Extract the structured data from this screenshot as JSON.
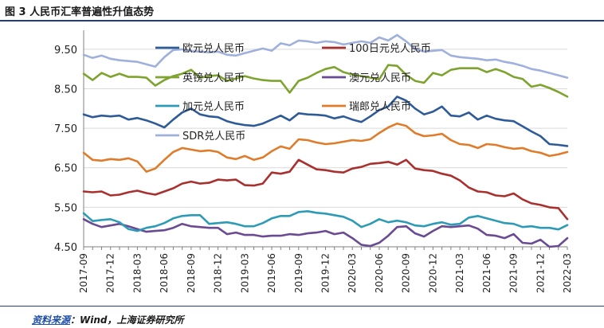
{
  "header": {
    "title": "图 3  人民币汇率普遍性升值态势"
  },
  "footer": {
    "source_label": "资料来源",
    "source_text": "：Wind，上海证券研究所"
  },
  "colors": {
    "eur": "#2e5b98",
    "jpy": "#a8312f",
    "gbp": "#7ea32f",
    "aud": "#6a4a92",
    "cad": "#2e9bb6",
    "chf": "#e07b2a",
    "sdr": "#9fb0dc"
  },
  "chart_data": {
    "type": "line",
    "title": "人民币汇率普遍性升值态势",
    "xlabel": "",
    "ylabel": "",
    "ylim": [
      4.5,
      9.9
    ],
    "yticks": [
      4.5,
      5.5,
      6.5,
      7.5,
      8.5,
      9.5
    ],
    "ytick_labels": [
      "4.50",
      "5.50",
      "6.50",
      "7.50",
      "8.50",
      "9.50"
    ],
    "x": [
      "2017-09",
      "2017-10",
      "2017-11",
      "2017-12",
      "2018-01",
      "2018-02",
      "2018-03",
      "2018-04",
      "2018-05",
      "2018-06",
      "2018-07",
      "2018-08",
      "2018-09",
      "2018-10",
      "2018-11",
      "2018-12",
      "2019-01",
      "2019-02",
      "2019-03",
      "2019-04",
      "2019-05",
      "2019-06",
      "2019-07",
      "2019-08",
      "2019-09",
      "2019-10",
      "2019-11",
      "2019-12",
      "2020-01",
      "2020-02",
      "2020-03",
      "2020-04",
      "2020-05",
      "2020-06",
      "2020-07",
      "2020-08",
      "2020-09",
      "2020-10",
      "2020-11",
      "2020-12",
      "2021-01",
      "2021-02",
      "2021-03",
      "2021-04",
      "2021-05",
      "2021-06",
      "2021-07",
      "2021-08",
      "2021-09",
      "2021-10",
      "2021-11",
      "2021-12",
      "2022-01",
      "2022-02",
      "2022-03"
    ],
    "xtick_labels": [
      "2017-09",
      "2017-12",
      "2018-03",
      "2018-06",
      "2018-09",
      "2018-12",
      "2019-03",
      "2019-06",
      "2019-09",
      "2019-12",
      "2020-03",
      "2020-06",
      "2020-09",
      "2020-12",
      "2021-03",
      "2021-06",
      "2021-09",
      "2021-12",
      "2022-03"
    ],
    "legend": {
      "position": "inside-top",
      "columns": 2
    },
    "series": [
      {
        "name": "欧元兑人民币",
        "key": "eur",
        "values": [
          7.85,
          7.78,
          7.82,
          7.8,
          7.82,
          7.72,
          7.76,
          7.7,
          7.62,
          7.52,
          7.72,
          7.9,
          8.0,
          7.85,
          7.8,
          7.78,
          7.68,
          7.62,
          7.58,
          7.56,
          7.62,
          7.72,
          7.82,
          7.7,
          7.88,
          7.85,
          7.84,
          7.82,
          7.75,
          7.8,
          7.72,
          7.66,
          7.8,
          7.96,
          8.05,
          8.3,
          8.2,
          8.0,
          7.85,
          7.92,
          8.05,
          7.82,
          7.8,
          7.9,
          7.72,
          7.82,
          7.74,
          7.7,
          7.68,
          7.55,
          7.42,
          7.3,
          7.1,
          7.08,
          7.05
        ]
      },
      {
        "name": "100日元兑人民币",
        "key": "jpy",
        "values": [
          5.9,
          5.88,
          5.9,
          5.8,
          5.82,
          5.88,
          5.92,
          5.86,
          5.82,
          5.9,
          5.98,
          6.1,
          6.15,
          6.1,
          6.12,
          6.2,
          6.18,
          6.2,
          6.06,
          6.05,
          6.1,
          6.38,
          6.35,
          6.4,
          6.7,
          6.58,
          6.46,
          6.44,
          6.4,
          6.38,
          6.48,
          6.52,
          6.6,
          6.62,
          6.65,
          6.58,
          6.7,
          6.48,
          6.44,
          6.42,
          6.35,
          6.3,
          6.18,
          6.0,
          5.9,
          5.88,
          5.8,
          5.78,
          5.85,
          5.7,
          5.6,
          5.56,
          5.5,
          5.48,
          5.2
        ]
      },
      {
        "name": "英镑兑人民币",
        "key": "gbp",
        "values": [
          8.88,
          8.72,
          8.9,
          8.8,
          8.88,
          8.8,
          8.8,
          8.78,
          8.58,
          8.72,
          8.82,
          8.88,
          8.98,
          8.78,
          8.82,
          8.84,
          8.7,
          8.76,
          8.82,
          8.76,
          8.72,
          8.7,
          8.7,
          8.4,
          8.7,
          8.78,
          8.9,
          9.0,
          9.05,
          8.92,
          8.86,
          8.82,
          8.78,
          8.74,
          9.1,
          9.08,
          8.85,
          8.7,
          8.65,
          8.9,
          8.84,
          8.98,
          9.02,
          9.02,
          9.02,
          8.92,
          9.0,
          8.92,
          8.8,
          8.75,
          8.55,
          8.6,
          8.52,
          8.42,
          8.3
        ]
      },
      {
        "name": "澳元兑人民币",
        "key": "aud",
        "values": [
          5.2,
          5.08,
          5.0,
          5.04,
          5.08,
          5.02,
          4.95,
          4.88,
          4.9,
          4.92,
          4.98,
          5.08,
          5.02,
          5.0,
          4.98,
          4.98,
          4.82,
          4.86,
          4.8,
          4.8,
          4.76,
          4.78,
          4.78,
          4.82,
          4.8,
          4.84,
          4.86,
          4.9,
          4.82,
          4.86,
          4.72,
          4.55,
          4.52,
          4.6,
          4.78,
          5.0,
          5.02,
          4.84,
          4.76,
          4.9,
          5.02,
          5.0,
          5.02,
          5.04,
          4.96,
          4.8,
          4.78,
          4.72,
          4.82,
          4.6,
          4.58,
          4.68,
          4.5,
          4.52,
          4.72
        ]
      },
      {
        "name": "加元兑人民币",
        "key": "cad",
        "values": [
          5.35,
          5.15,
          5.18,
          5.2,
          5.12,
          4.95,
          4.9,
          4.98,
          5.02,
          5.1,
          5.22,
          5.28,
          5.3,
          5.3,
          5.08,
          5.1,
          5.12,
          5.08,
          5.02,
          5.02,
          5.1,
          5.22,
          5.28,
          5.28,
          5.38,
          5.4,
          5.36,
          5.34,
          5.3,
          5.26,
          5.16,
          5.0,
          5.08,
          5.2,
          5.12,
          5.16,
          5.12,
          5.04,
          5.02,
          5.08,
          5.12,
          5.06,
          5.08,
          5.24,
          5.28,
          5.22,
          5.16,
          5.1,
          5.08,
          5.0,
          5.02,
          4.98,
          4.98,
          4.94,
          5.05
        ]
      },
      {
        "name": "瑞郎兑人民币",
        "key": "chf",
        "values": [
          6.88,
          6.7,
          6.68,
          6.72,
          6.7,
          6.74,
          6.66,
          6.4,
          6.48,
          6.7,
          6.9,
          7.0,
          6.96,
          6.92,
          6.94,
          6.9,
          6.76,
          6.72,
          6.8,
          6.7,
          6.76,
          6.92,
          7.04,
          6.98,
          7.22,
          7.2,
          7.14,
          7.1,
          7.12,
          7.16,
          7.2,
          7.18,
          7.22,
          7.38,
          7.52,
          7.62,
          7.56,
          7.38,
          7.3,
          7.32,
          7.36,
          7.2,
          7.1,
          7.08,
          7.0,
          7.1,
          7.08,
          7.02,
          6.98,
          7.0,
          6.92,
          6.88,
          6.8,
          6.84,
          6.9
        ]
      },
      {
        "name": "SDR兑人民币",
        "key": "sdr",
        "values": [
          9.36,
          9.28,
          9.34,
          9.26,
          9.22,
          9.2,
          9.18,
          9.12,
          9.06,
          9.3,
          9.48,
          9.5,
          9.45,
          9.44,
          9.42,
          9.44,
          9.36,
          9.34,
          9.4,
          9.46,
          9.52,
          9.46,
          9.65,
          9.6,
          9.72,
          9.7,
          9.66,
          9.7,
          9.68,
          9.62,
          9.66,
          9.7,
          9.66,
          9.8,
          9.72,
          9.86,
          9.7,
          9.5,
          9.44,
          9.46,
          9.48,
          9.34,
          9.3,
          9.28,
          9.26,
          9.22,
          9.24,
          9.18,
          9.14,
          9.08,
          9.0,
          8.96,
          8.9,
          8.84,
          8.78
        ]
      }
    ]
  }
}
